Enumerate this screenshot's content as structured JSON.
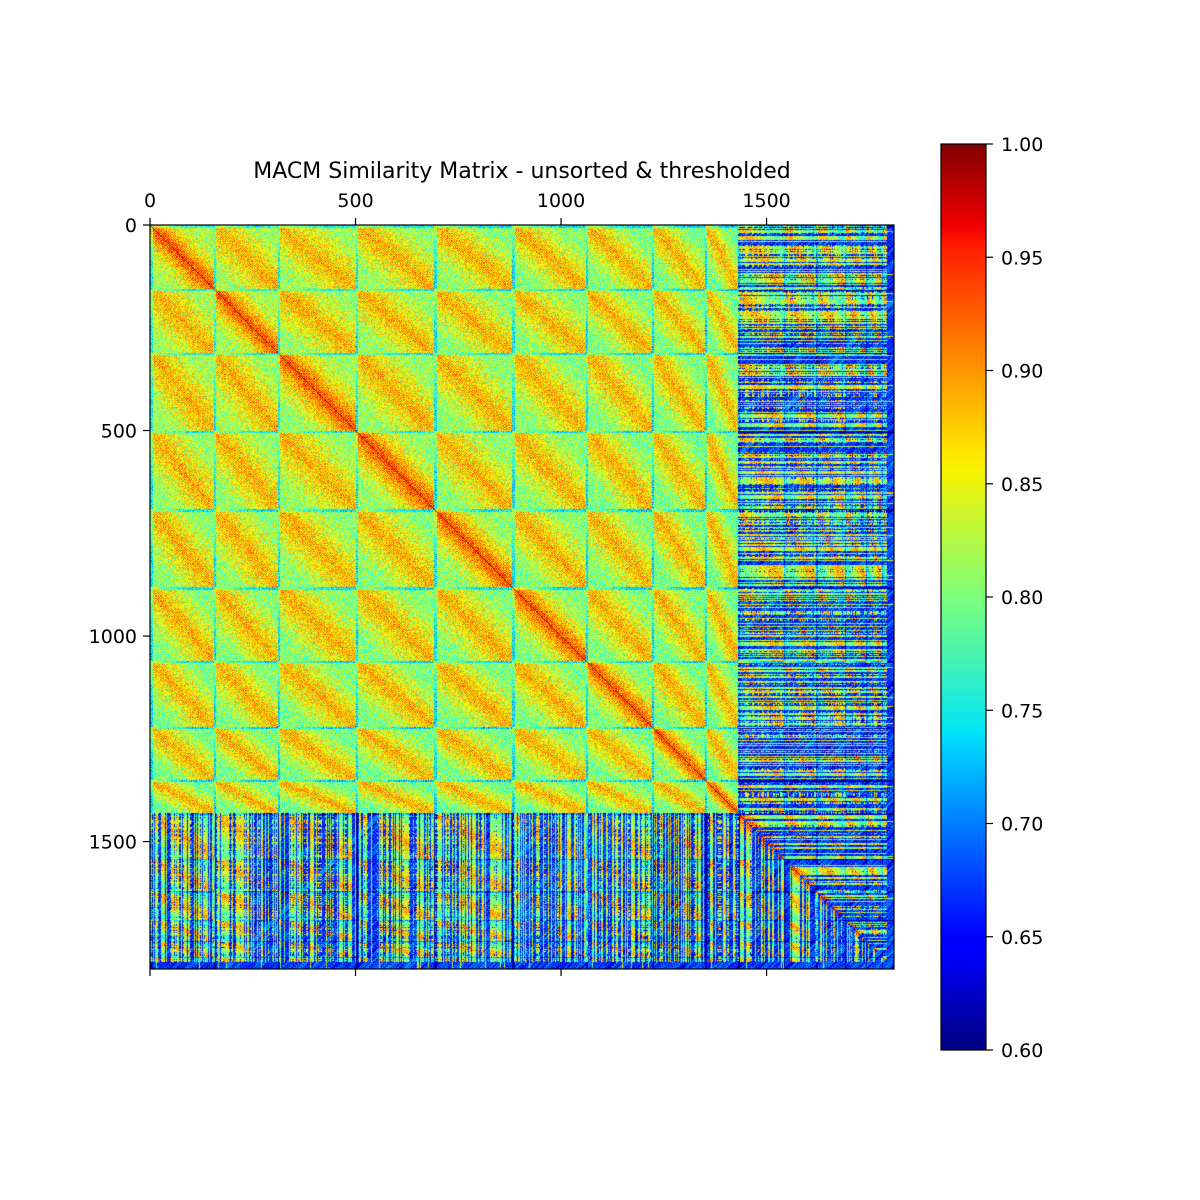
{
  "chart_data": {
    "type": "heatmap",
    "title": "MACM Similarity Matrix - unsorted & thresholded",
    "n": 1810,
    "x_ticks": [
      0,
      500,
      1000,
      1500
    ],
    "y_ticks": [
      0,
      500,
      1000,
      1500
    ],
    "x_tick_labels": [
      "0",
      "500",
      "1000",
      "1500"
    ],
    "y_tick_labels": [
      "0",
      "500",
      "1000",
      "1500"
    ],
    "x_axis_position": "top",
    "colormap": "jet",
    "value_range": [
      0.6,
      1.0
    ],
    "colorbar_ticks": [
      1.0,
      0.95,
      0.9,
      0.85,
      0.8,
      0.75,
      0.7,
      0.65,
      0.6
    ],
    "colorbar_labels": [
      "1.00",
      "0.95",
      "0.90",
      "0.85",
      "0.80",
      "0.75",
      "0.70",
      "0.65",
      "0.60"
    ],
    "block_boundaries": [
      0,
      155,
      310,
      500,
      690,
      880,
      1060,
      1220,
      1350,
      1430,
      1540,
      1620,
      1690,
      1740,
      1780,
      1810
    ],
    "pattern": "block-structured similarity; high values (~0.90-1.00) along the main diagonal and within repeating blocks, mid values (~0.80-0.88) off-diagonal, low values (~0.60-0.70) at thresholded rows/columns near the end of the matrix"
  }
}
